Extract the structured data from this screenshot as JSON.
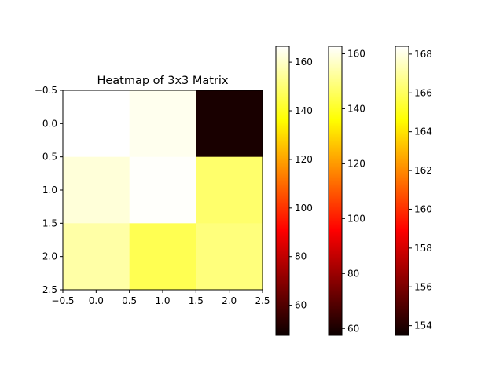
{
  "chart_data": {
    "type": "heatmap",
    "title": "Heatmap of 3x3 Matrix",
    "xlabel": "",
    "ylabel": "",
    "colormap": "hot",
    "x_ticks": [
      "−0.5",
      "0.0",
      "0.5",
      "1.0",
      "1.5",
      "2.0",
      "2.5"
    ],
    "y_ticks": [
      "−0.5",
      "0.0",
      "0.5",
      "1.0",
      "1.5",
      "2.0",
      "2.5"
    ],
    "xlim": [
      -0.5,
      2.5
    ],
    "ylim": [
      2.5,
      -0.5
    ],
    "matrix": [
      [
        168.0,
        164.5,
        50.0
      ],
      [
        162.0,
        166.0,
        149.0
      ],
      [
        156.0,
        146.0,
        151.0
      ]
    ],
    "colorbars": [
      {
        "vmin": 47.6,
        "vmax": 166.5,
        "tick_values": [
          60,
          80,
          100,
          120,
          140,
          160
        ],
        "tick_labels": [
          "60",
          "80",
          "100",
          "120",
          "140",
          "160"
        ]
      },
      {
        "vmin": 57.5,
        "vmax": 162.7,
        "tick_values": [
          60,
          80,
          100,
          120,
          140,
          160
        ],
        "tick_labels": [
          "60",
          "80",
          "100",
          "120",
          "140",
          "160"
        ]
      },
      {
        "vmin": 153.5,
        "vmax": 168.4,
        "tick_values": [
          154,
          156,
          158,
          160,
          162,
          164,
          166,
          168
        ],
        "tick_labels": [
          "154",
          "156",
          "158",
          "160",
          "162",
          "164",
          "166",
          "168"
        ]
      }
    ]
  }
}
